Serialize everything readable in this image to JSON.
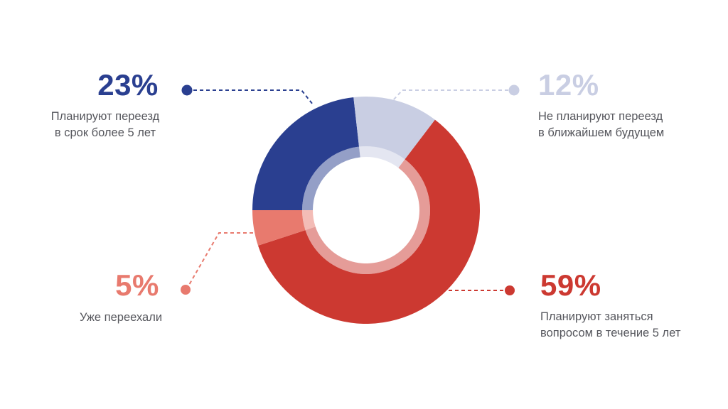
{
  "background": "#ffffff",
  "text_color": "#55565c",
  "chart_data": {
    "type": "pie",
    "variant": "donut",
    "unit": "%",
    "start_angle_deg": 270,
    "direction": "clockwise",
    "legend_position": "callouts",
    "inner_ring_opacity": 0.5,
    "segments": [
      {
        "name": "Планируют переезд в срок более 5 лет",
        "value": 23,
        "display": "23%",
        "color": "#2a3f90"
      },
      {
        "name": "Не планируют переезд в ближайшем будущем",
        "value": 12,
        "display": "12%",
        "color": "#c9cee3"
      },
      {
        "name": "Планируют заняться вопросом в течение 5 лет",
        "value": 59,
        "display": "59%",
        "color": "#cc3931"
      },
      {
        "name": "Уже переехали",
        "value": 5,
        "display": "5%",
        "color": "#e87a6e"
      }
    ]
  },
  "callouts": {
    "top_left": {
      "pct": "23%",
      "lines": [
        "Планируют переезд",
        "в срок более 5 лет"
      ]
    },
    "top_right": {
      "pct": "12%",
      "lines": [
        "Не планируют переезд",
        "в ближайшем будущем"
      ]
    },
    "bottom_left": {
      "pct": "5%",
      "lines": [
        "Уже переехали"
      ]
    },
    "bottom_right": {
      "pct": "59%",
      "lines": [
        "Планируют заняться",
        "вопросом в течение 5 лет"
      ]
    }
  }
}
